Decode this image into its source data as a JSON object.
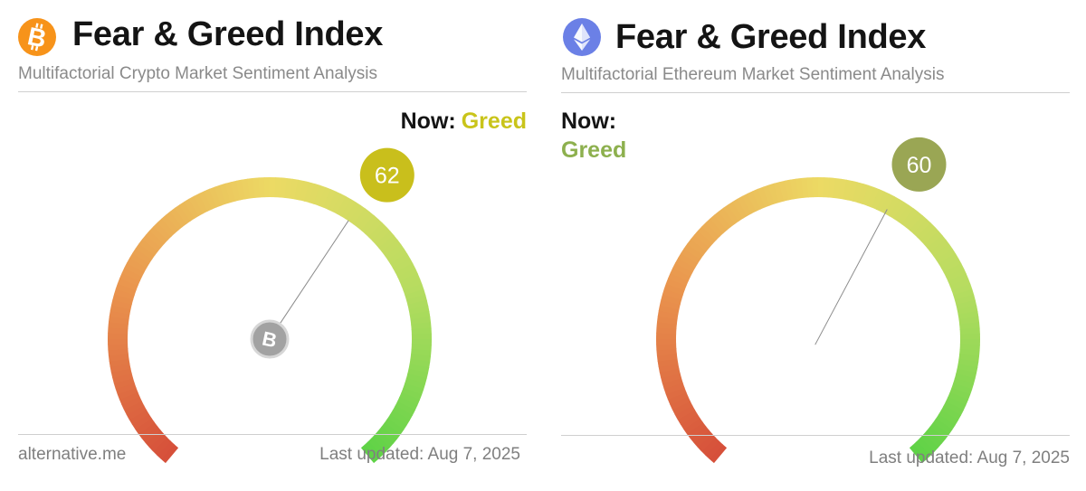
{
  "chart_data": [
    {
      "type": "gauge",
      "title": "Fear & Greed Index",
      "subtitle": "Multifactorial Crypto Market Sentiment Analysis",
      "value": 62,
      "range": [
        0,
        100
      ],
      "now_label": "Now:",
      "classification": "Greed",
      "classification_color": "#c9c41a",
      "bubble_color": "#c9bf1c",
      "logo_icon": "bitcoin-icon",
      "logo_color": "#f7931a",
      "source": "alternative.me",
      "last_updated": "Last updated: Aug 7, 2025"
    },
    {
      "type": "gauge",
      "title": "Fear & Greed Index",
      "subtitle": "Multifactorial Ethereum Market Sentiment Analysis",
      "value": 60,
      "range": [
        0,
        100
      ],
      "now_label": "Now:",
      "classification": "Greed",
      "classification_color": "#8db04e",
      "bubble_color": "#9aa654",
      "logo_icon": "ethereum-icon",
      "logo_color": "#6b80e6",
      "last_updated": "Last updated: Aug 7, 2025"
    }
  ]
}
